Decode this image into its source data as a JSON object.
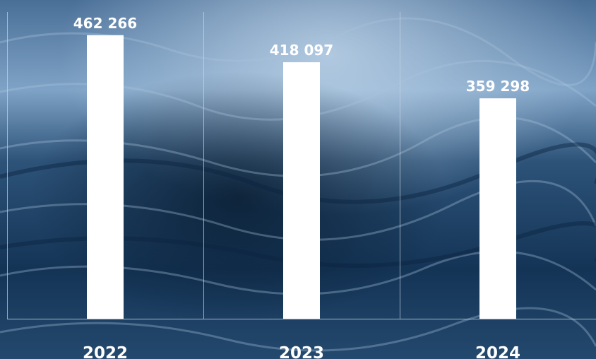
{
  "chart_data": {
    "type": "bar",
    "categories": [
      "2022",
      "2023",
      "2024"
    ],
    "values": [
      462266,
      418097,
      359298
    ],
    "value_labels": [
      "462 266",
      "418 097",
      "359 298"
    ],
    "ylim": [
      0,
      500000
    ],
    "grid": false,
    "colors": {
      "bar": "#ffffff",
      "axis": "#c9d6e3",
      "text": "#ffffff"
    }
  },
  "background": {
    "description_icon": "ocean-waves-photo",
    "colors": [
      "#0d2a47",
      "#2e5680",
      "#8fb3d4"
    ]
  }
}
